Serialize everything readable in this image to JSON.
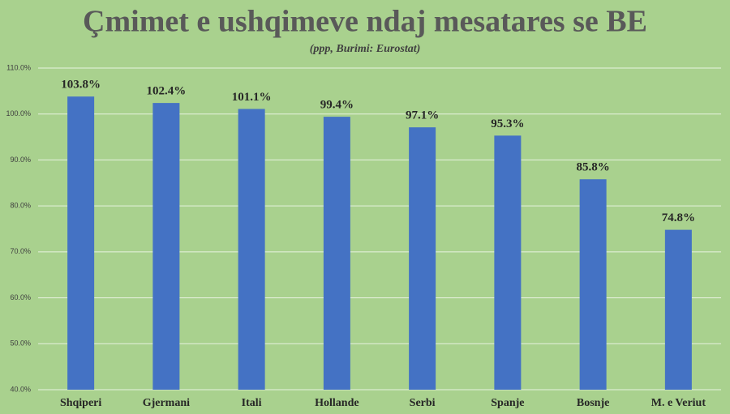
{
  "chart_data": {
    "type": "bar",
    "title": "Çmimet e ushqimeve ndaj mesatares se BE",
    "subtitle": "(ppp, Burimi: Eurostat)",
    "categories": [
      "Shqiperi",
      "Gjermani",
      "Itali",
      "Hollande",
      "Serbi",
      "Spanje",
      "Bosnje",
      "M. e Veriut"
    ],
    "values": [
      103.8,
      102.4,
      101.1,
      99.4,
      97.1,
      95.3,
      85.8,
      74.8
    ],
    "value_labels": [
      "103.8%",
      "102.4%",
      "101.1%",
      "99.4%",
      "97.1%",
      "95.3%",
      "85.8%",
      "74.8%"
    ],
    "color": "#4472c4",
    "ylim": [
      40,
      110
    ],
    "yticks": [
      {
        "value": 40,
        "label": "40.0%"
      },
      {
        "value": 50,
        "label": "50.0%"
      },
      {
        "value": 60,
        "label": "60.0%"
      },
      {
        "value": 70,
        "label": "70.0%"
      },
      {
        "value": 80,
        "label": "80.0%"
      },
      {
        "value": 90,
        "label": "90.0%"
      },
      {
        "value": 100,
        "label": "100.0%"
      },
      {
        "value": 110,
        "label": "110.0%"
      }
    ],
    "grid": true
  }
}
